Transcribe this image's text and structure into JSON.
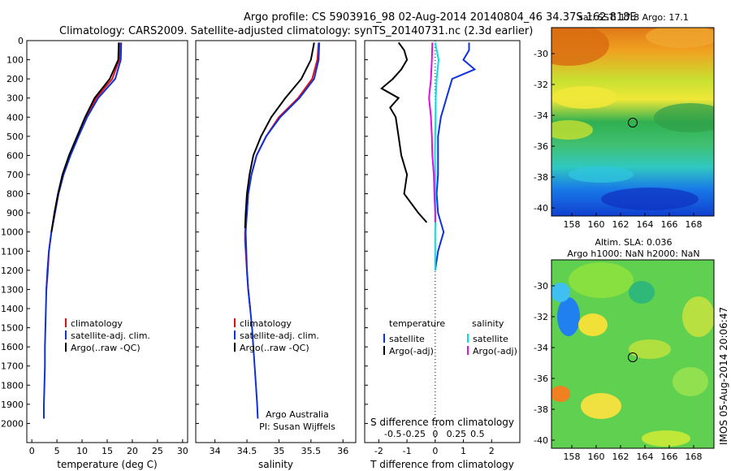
{
  "header": {
    "line1": "Argo profile: CS 5903916_98 02-Aug-2014 20140804_46 34.37S 162.818E",
    "line2": "Climatology: CARS2009. Satellite-adjusted climatology: synTS_20140731.nc (2.3d earlier)"
  },
  "side_label": "IMOS 05-Aug-2014 20:06:47",
  "colors": {
    "climatology": "#e01010",
    "satellite": "#1030e0",
    "argo": "#000000",
    "sal_sat": "#00e0e8",
    "sal_argo": "#e010e0"
  },
  "chart_data": [
    {
      "id": "temperature",
      "type": "line",
      "xlabel": "temperature (deg C)",
      "xlim": [
        -1,
        31
      ],
      "ylim": [
        0,
        2100
      ],
      "xticks": [
        0,
        5,
        10,
        15,
        20,
        25,
        30
      ],
      "yticks": [
        0,
        100,
        200,
        300,
        400,
        500,
        600,
        700,
        800,
        900,
        1000,
        1100,
        1200,
        1300,
        1400,
        1500,
        1600,
        1700,
        1800,
        1900,
        2000
      ],
      "legend": [
        "climatology",
        "satellite-adj. clim.",
        "Argo(..raw -QC)"
      ],
      "series": [
        {
          "name": "climatology",
          "color": "#e01010",
          "depth": [
            10,
            100,
            200,
            300,
            400,
            500,
            600,
            700,
            800,
            900,
            1000,
            1100,
            1200,
            1300
          ],
          "values": [
            17.6,
            17.4,
            16.0,
            12.8,
            10.9,
            9.2,
            7.6,
            6.3,
            5.3,
            4.6,
            3.9,
            3.4,
            3.2,
            2.9
          ]
        },
        {
          "name": "satellite-adj. clim.",
          "color": "#1030e0",
          "depth": [
            10,
            100,
            200,
            300,
            400,
            500,
            600,
            700,
            800,
            900,
            1000,
            1100,
            1200,
            1300,
            1400,
            1500,
            1600,
            1700,
            1800,
            1900,
            1975
          ],
          "values": [
            17.8,
            17.7,
            16.6,
            13.2,
            11.0,
            9.3,
            7.7,
            6.3,
            5.3,
            4.6,
            3.9,
            3.4,
            3.1,
            2.9,
            2.8,
            2.7,
            2.6,
            2.6,
            2.5,
            2.4,
            2.4
          ]
        },
        {
          "name": "Argo(..raw -QC)",
          "color": "#000000",
          "depth": [
            10,
            100,
            200,
            250,
            300,
            400,
            500,
            600,
            700,
            800,
            900,
            1000
          ],
          "values": [
            17.3,
            17.2,
            15.5,
            14.0,
            12.5,
            10.6,
            9.0,
            7.4,
            6.1,
            5.2,
            4.5,
            3.9
          ]
        }
      ]
    },
    {
      "id": "salinity",
      "type": "line",
      "xlabel": "salinity",
      "xlim": [
        33.7,
        36.2
      ],
      "ylim": [
        0,
        2100
      ],
      "xticks": [
        34,
        34.5,
        35,
        35.5,
        36
      ],
      "legend": [
        "climatology",
        "satellite-adj. clim.",
        "Argo(..raw -QC)"
      ],
      "notes": [
        "Argo Australia",
        "PI: Susan Wijffels"
      ],
      "series": [
        {
          "name": "climatology",
          "color": "#e01010",
          "depth": [
            10,
            100,
            200,
            300,
            400,
            500,
            600,
            700,
            800,
            900,
            1000,
            1050,
            1100,
            1200,
            1300,
            1400
          ],
          "values": [
            35.62,
            35.6,
            35.52,
            35.3,
            35.0,
            34.8,
            34.65,
            34.57,
            34.52,
            34.5,
            34.47,
            34.47,
            34.48,
            34.5,
            34.52,
            34.55
          ]
        },
        {
          "name": "satellite-adj. clim.",
          "color": "#1030e0",
          "depth": [
            10,
            100,
            200,
            300,
            400,
            500,
            600,
            700,
            800,
            900,
            1000,
            1100,
            1200,
            1300,
            1400,
            1500,
            1600,
            1700,
            1800,
            1900,
            1975
          ],
          "values": [
            35.63,
            35.62,
            35.55,
            35.32,
            35.02,
            34.8,
            34.65,
            34.57,
            34.52,
            34.5,
            34.48,
            34.49,
            34.5,
            34.52,
            34.55,
            34.58,
            34.6,
            34.62,
            34.64,
            34.66,
            34.67
          ]
        },
        {
          "name": "Argo(..raw -QC)",
          "color": "#000000",
          "depth": [
            10,
            100,
            200,
            300,
            400,
            500,
            600,
            700,
            800,
            900,
            980
          ],
          "values": [
            35.55,
            35.5,
            35.35,
            35.1,
            34.88,
            34.72,
            34.6,
            34.54,
            34.5,
            34.48,
            34.47
          ]
        }
      ]
    },
    {
      "id": "difference",
      "type": "line",
      "xlabel": "T difference from climatology",
      "xlabel_top": "S difference from climatology",
      "xlim": [
        -2.5,
        3
      ],
      "ylim": [
        0,
        2100
      ],
      "xticks": [
        -2,
        -1,
        0,
        1,
        2
      ],
      "xticks_s": [
        "-0.5",
        "-0.25",
        "0",
        "0.25",
        "0.5"
      ],
      "legend_titles": [
        "temperature",
        "salinity"
      ],
      "legend": [
        "satellite",
        "Argo(-adj)",
        "satellite",
        "Argo(-adj)"
      ],
      "series": [
        {
          "name": "T satellite",
          "color": "#1030e0",
          "depth": [
            10,
            50,
            100,
            150,
            200,
            300,
            400,
            500,
            600,
            700,
            800,
            900,
            1000,
            1100,
            1200
          ],
          "values": [
            1.2,
            1.2,
            1.0,
            1.4,
            0.6,
            0.4,
            0.2,
            0.1,
            0.1,
            0.1,
            0.05,
            0.1,
            0.3,
            0.1,
            0.0
          ]
        },
        {
          "name": "T Argo(-adj)",
          "color": "#000000",
          "depth": [
            10,
            50,
            100,
            150,
            200,
            250,
            300,
            350,
            400,
            500,
            600,
            700,
            800,
            900,
            950
          ],
          "values": [
            -1.3,
            -1.1,
            -1.0,
            -1.2,
            -1.5,
            -1.9,
            -1.3,
            -1.6,
            -1.4,
            -1.3,
            -1.2,
            -1.0,
            -1.1,
            -0.6,
            -0.3
          ]
        },
        {
          "name": "S satellite",
          "color": "#00e0e8",
          "depth": [
            10,
            100,
            200,
            300,
            400,
            500,
            600,
            700,
            800,
            900,
            1000,
            1100,
            1200
          ],
          "values": [
            0.0,
            0.12,
            0.05,
            0.02,
            0.01,
            0.0,
            -0.01,
            0.0,
            0.0,
            0.01,
            0.0,
            0.0,
            0.0
          ]
        },
        {
          "name": "S Argo(-adj)",
          "color": "#e010e0",
          "depth": [
            10,
            100,
            200,
            300,
            400,
            500,
            600,
            700,
            800,
            900,
            950
          ],
          "values": [
            -0.1,
            -0.12,
            -0.15,
            -0.22,
            -0.15,
            -0.12,
            -0.1,
            -0.05,
            -0.03,
            0.0,
            0.0
          ]
        }
      ]
    }
  ],
  "map_sst": {
    "title": "sat. SST: 17.8 Argo: 17.1",
    "xticks": [
      "158",
      "160",
      "162",
      "164",
      "166",
      "168"
    ],
    "yticks": [
      "-30",
      "-32",
      "-34",
      "-36",
      "-38",
      "-40"
    ]
  },
  "map_sla": {
    "title1": "Altim. SLA: 0.036",
    "title2": "Argo h1000: NaN h2000: NaN",
    "xticks": [
      "158",
      "160",
      "162",
      "164",
      "166",
      "168"
    ],
    "yticks": [
      "-30",
      "-32",
      "-34",
      "-36",
      "-38",
      "-40"
    ]
  }
}
